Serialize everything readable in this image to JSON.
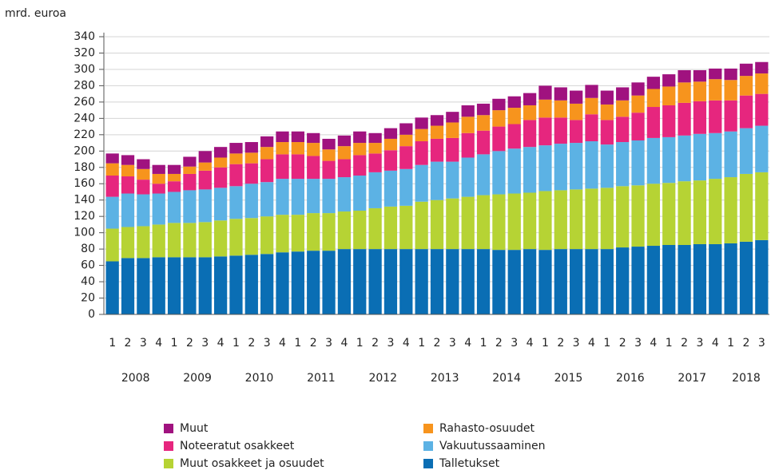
{
  "chart_data": {
    "type": "stacked-bar",
    "y_axis_label": "mrd. euroa",
    "categories": [
      "1",
      "2",
      "3",
      "4",
      "1",
      "2",
      "3",
      "4",
      "1",
      "2",
      "3",
      "4",
      "1",
      "2",
      "3",
      "4",
      "1",
      "2",
      "3",
      "4",
      "1",
      "2",
      "3",
      "4",
      "1",
      "2",
      "3",
      "4",
      "1",
      "2",
      "3",
      "4",
      "1",
      "2",
      "3",
      "4",
      "1",
      "2",
      "3",
      "4",
      "1",
      "2",
      "3"
    ],
    "year_labels": [
      "2008",
      "2009",
      "2010",
      "2011",
      "2012",
      "2013",
      "2014",
      "2015",
      "2016",
      "2017",
      "2018"
    ],
    "series": [
      {
        "name": "Talletukset",
        "color": "#0a6eb4",
        "values": [
          65,
          69,
          69,
          70,
          70,
          70,
          70,
          71,
          72,
          73,
          74,
          76,
          77,
          78,
          78,
          80,
          80,
          80,
          80,
          80,
          80,
          80,
          80,
          80,
          80,
          79,
          79,
          80,
          79,
          80,
          80,
          80,
          80,
          82,
          83,
          84,
          85,
          85,
          86,
          86,
          87,
          89,
          91
        ]
      },
      {
        "name": "Muut osakkeet ja osuudet",
        "color": "#b6d334",
        "values": [
          40,
          38,
          39,
          40,
          42,
          42,
          43,
          44,
          45,
          45,
          46,
          46,
          45,
          46,
          46,
          46,
          47,
          50,
          52,
          53,
          58,
          60,
          62,
          64,
          66,
          68,
          69,
          69,
          72,
          72,
          73,
          74,
          75,
          75,
          75,
          76,
          76,
          78,
          78,
          80,
          81,
          83,
          83
        ]
      },
      {
        "name": "Vakuutussaaminen",
        "color": "#5cb2e4",
        "values": [
          39,
          41,
          39,
          38,
          38,
          40,
          40,
          40,
          40,
          42,
          42,
          44,
          44,
          42,
          42,
          42,
          43,
          44,
          44,
          45,
          45,
          47,
          45,
          48,
          50,
          53,
          55,
          56,
          56,
          57,
          57,
          58,
          53,
          54,
          55,
          56,
          56,
          56,
          57,
          56,
          56,
          56,
          57
        ]
      },
      {
        "name": "Noteeratut osakkeet",
        "color": "#e6267e",
        "values": [
          26,
          21,
          18,
          12,
          13,
          20,
          23,
          25,
          27,
          25,
          28,
          30,
          30,
          28,
          22,
          22,
          25,
          23,
          25,
          28,
          29,
          28,
          29,
          30,
          29,
          30,
          30,
          33,
          34,
          32,
          28,
          33,
          30,
          31,
          34,
          38,
          39,
          40,
          40,
          40,
          38,
          40,
          39
        ]
      },
      {
        "name": "Rahasto-osuudet",
        "color": "#f7941d",
        "values": [
          15,
          14,
          13,
          12,
          9,
          9,
          10,
          12,
          13,
          13,
          15,
          15,
          15,
          16,
          14,
          16,
          15,
          13,
          14,
          14,
          15,
          16,
          19,
          20,
          19,
          20,
          20,
          18,
          22,
          21,
          20,
          20,
          19,
          20,
          21,
          22,
          23,
          25,
          24,
          26,
          25,
          24,
          25
        ]
      },
      {
        "name": "Muut",
        "color": "#a0127f",
        "values": [
          12,
          12,
          12,
          11,
          11,
          12,
          14,
          13,
          13,
          13,
          13,
          13,
          13,
          12,
          13,
          13,
          14,
          12,
          13,
          14,
          14,
          13,
          13,
          14,
          14,
          14,
          14,
          15,
          17,
          16,
          16,
          16,
          17,
          16,
          16,
          15,
          15,
          15,
          14,
          13,
          14,
          15,
          14
        ]
      }
    ],
    "ylim": [
      0,
      345
    ],
    "yticks": [
      0,
      20,
      40,
      60,
      80,
      100,
      120,
      140,
      160,
      180,
      200,
      220,
      240,
      260,
      280,
      300,
      320,
      340
    ],
    "grid": true
  }
}
